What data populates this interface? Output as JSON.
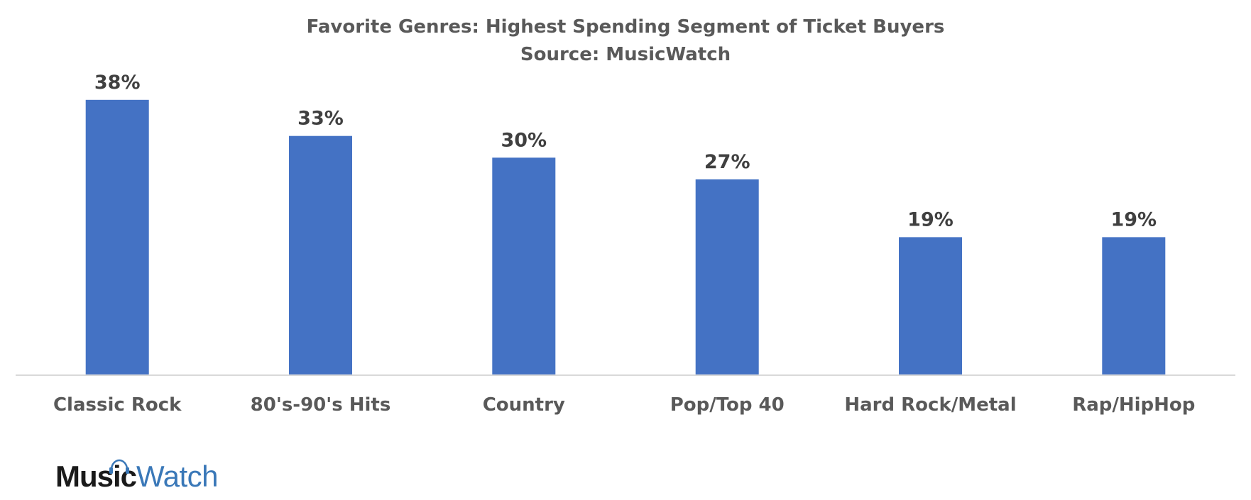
{
  "chart_data": {
    "type": "bar",
    "title": "Favorite Genres: Highest Spending Segment of Ticket Buyers",
    "subtitle": "Source: MusicWatch",
    "categories": [
      "Classic Rock",
      "80's-90's Hits",
      "Country",
      "Pop/Top 40",
      "Hard Rock/Metal",
      "Rap/HipHop"
    ],
    "values": [
      38,
      33,
      30,
      27,
      19,
      19
    ],
    "data_labels": [
      "38%",
      "33%",
      "30%",
      "27%",
      "19%",
      "19%"
    ],
    "ylim": [
      0,
      40
    ],
    "grid": false,
    "legend": "none",
    "bar_color": "#4472C4"
  },
  "logo": {
    "music": "Music",
    "watch": "Watch"
  }
}
